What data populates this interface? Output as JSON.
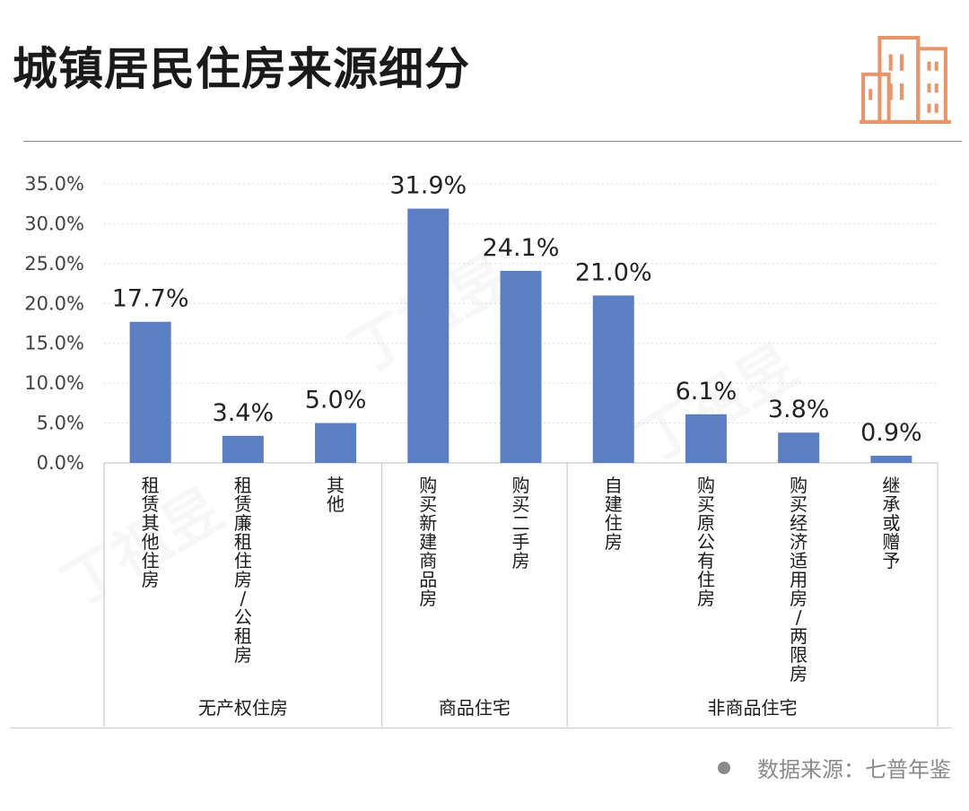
{
  "page": {
    "title": "城镇居民住房来源细分",
    "source": "数据来源：七普年鉴",
    "logo_icon": "building-icon",
    "watermark": "丁祖昱"
  },
  "colors": {
    "bar": "#5b7fc2",
    "logo": "#e8956a",
    "grid": "#dcdcdc"
  },
  "chart_data": {
    "type": "bar",
    "title": "城镇居民住房来源细分",
    "xlabel": "",
    "ylabel": "",
    "ylim": [
      0,
      35
    ],
    "yticks": [
      "0.0%",
      "5.0%",
      "10.0%",
      "15.0%",
      "20.0%",
      "25.0%",
      "30.0%",
      "35.0%"
    ],
    "categories": [
      "租赁其他住房",
      "租赁廉租住房/公租房",
      "其他",
      "购买新建商品房",
      "购买二手房",
      "自建住房",
      "购买原公有住房",
      "购买经济适用房/两限房",
      "继承或赠予"
    ],
    "values": [
      17.7,
      3.4,
      5.0,
      31.9,
      24.1,
      21.0,
      6.1,
      3.8,
      0.9
    ],
    "labels": [
      "17.7%",
      "3.4%",
      "5.0%",
      "31.9%",
      "24.1%",
      "21.0%",
      "6.1%",
      "3.8%",
      "0.9%"
    ],
    "groups": [
      {
        "name": "无产权住房",
        "count": 3
      },
      {
        "name": "商品住宅",
        "count": 2
      },
      {
        "name": "非商品住宅",
        "count": 4
      }
    ],
    "grid": true,
    "legend": "none"
  }
}
